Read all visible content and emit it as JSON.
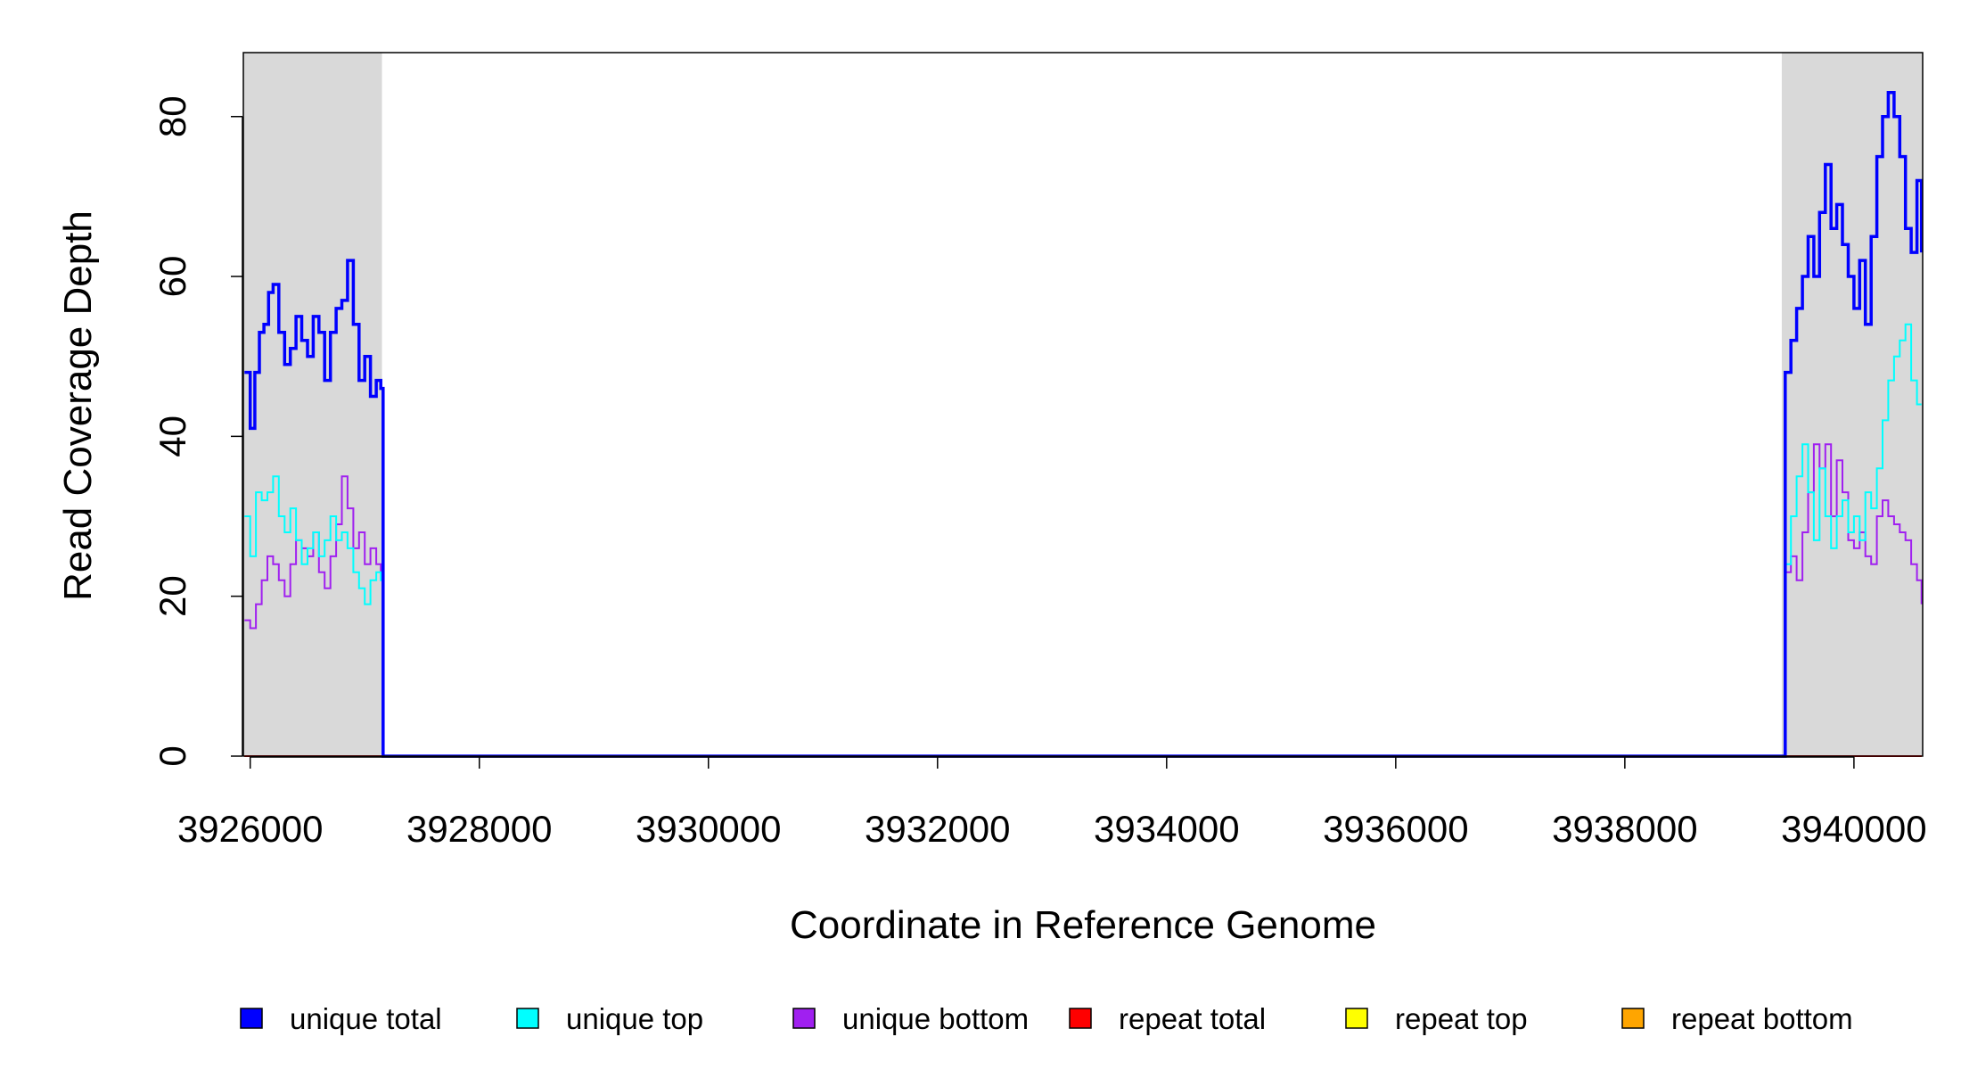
{
  "chart_data": {
    "type": "line",
    "title": "",
    "xlabel": "Coordinate in Reference Genome",
    "ylabel": "Read Coverage Depth",
    "xlim": [
      3925940,
      3940600
    ],
    "ylim": [
      0,
      88
    ],
    "xticks": [
      3926000,
      3928000,
      3930000,
      3932000,
      3934000,
      3936000,
      3938000,
      3940000
    ],
    "xtick_labels": [
      "3926000",
      "3928000",
      "3930000",
      "3932000",
      "3934000",
      "3936000",
      "3938000",
      "3940000"
    ],
    "yticks": [
      0,
      20,
      40,
      60,
      80
    ],
    "ytick_labels": [
      "0",
      "20",
      "40",
      "60",
      "80"
    ],
    "grid": false,
    "legend_position": "bottom",
    "shaded_regions": [
      [
        3925940,
        3927150
      ],
      [
        3939370,
        3940600
      ]
    ],
    "shade_color": "#d9d9d9",
    "series": [
      {
        "name": "unique total",
        "color": "#0000ff",
        "x": [
          3925950,
          3926000,
          3926040,
          3926080,
          3926120,
          3926160,
          3926200,
          3926250,
          3926300,
          3926350,
          3926400,
          3926450,
          3926500,
          3926550,
          3926600,
          3926650,
          3926700,
          3926750,
          3926800,
          3926850,
          3926900,
          3926950,
          3927000,
          3927050,
          3927100,
          3927140,
          3927160,
          3929000,
          3932000,
          3935000,
          3938000,
          3939380,
          3939400,
          3939450,
          3939500,
          3939550,
          3939600,
          3939650,
          3939700,
          3939750,
          3939800,
          3939850,
          3939900,
          3939950,
          3940000,
          3940050,
          3940100,
          3940150,
          3940200,
          3940250,
          3940300,
          3940350,
          3940400,
          3940450,
          3940500,
          3940550,
          3940590
        ],
        "values": [
          48,
          41,
          48,
          53,
          54,
          58,
          59,
          53,
          49,
          51,
          55,
          52,
          50,
          55,
          53,
          47,
          53,
          56,
          57,
          62,
          54,
          47,
          50,
          45,
          47,
          46,
          0,
          0,
          0,
          0,
          0,
          0,
          48,
          52,
          56,
          60,
          65,
          60,
          68,
          74,
          66,
          69,
          64,
          60,
          56,
          62,
          54,
          65,
          75,
          80,
          83,
          80,
          75,
          66,
          63,
          72,
          63
        ]
      },
      {
        "name": "unique top",
        "color": "#00ffff",
        "x": [
          3925950,
          3926000,
          3926050,
          3926100,
          3926150,
          3926200,
          3926250,
          3926300,
          3926350,
          3926400,
          3926450,
          3926500,
          3926550,
          3926600,
          3926650,
          3926700,
          3926750,
          3926800,
          3926850,
          3926900,
          3926950,
          3927000,
          3927050,
          3927100,
          3927140,
          3927160,
          3930000,
          3935000,
          3939380,
          3939400,
          3939450,
          3939500,
          3939550,
          3939600,
          3939650,
          3939700,
          3939750,
          3939800,
          3939850,
          3939900,
          3939950,
          3940000,
          3940050,
          3940100,
          3940150,
          3940200,
          3940250,
          3940300,
          3940350,
          3940400,
          3940450,
          3940500,
          3940550,
          3940590
        ],
        "values": [
          30,
          25,
          33,
          32,
          33,
          35,
          30,
          28,
          31,
          27,
          24,
          26,
          28,
          25,
          27,
          30,
          27,
          28,
          26,
          23,
          21,
          19,
          22,
          23,
          22,
          0,
          0,
          0,
          0,
          24,
          30,
          35,
          39,
          33,
          27,
          36,
          30,
          26,
          30,
          32,
          28,
          30,
          27,
          33,
          31,
          36,
          42,
          47,
          50,
          52,
          54,
          47,
          44,
          44
        ]
      },
      {
        "name": "unique bottom",
        "color": "#a020f0",
        "x": [
          3925950,
          3926000,
          3926050,
          3926100,
          3926150,
          3926200,
          3926250,
          3926300,
          3926350,
          3926400,
          3926450,
          3926500,
          3926550,
          3926600,
          3926650,
          3926700,
          3926750,
          3926800,
          3926850,
          3926900,
          3926950,
          3927000,
          3927050,
          3927100,
          3927140,
          3927160,
          3930000,
          3935000,
          3939380,
          3939400,
          3939450,
          3939500,
          3939550,
          3939600,
          3939650,
          3939700,
          3939750,
          3939800,
          3939850,
          3939900,
          3939950,
          3940000,
          3940050,
          3940100,
          3940150,
          3940200,
          3940250,
          3940300,
          3940350,
          3940400,
          3940450,
          3940500,
          3940550,
          3940590
        ],
        "values": [
          17,
          16,
          19,
          22,
          25,
          24,
          22,
          20,
          24,
          27,
          26,
          25,
          28,
          23,
          21,
          25,
          29,
          35,
          31,
          26,
          28,
          24,
          26,
          24,
          23,
          0,
          0,
          0,
          0,
          23,
          25,
          22,
          28,
          33,
          39,
          36,
          39,
          30,
          37,
          33,
          27,
          26,
          28,
          25,
          24,
          30,
          32,
          30,
          29,
          28,
          27,
          24,
          22,
          19
        ]
      },
      {
        "name": "repeat total",
        "color": "#ff0000",
        "x": [
          3925950,
          3940590
        ],
        "values": [
          0,
          0
        ]
      },
      {
        "name": "repeat top",
        "color": "#ffff00",
        "x": [
          3925950,
          3940590
        ],
        "values": [
          0,
          0
        ]
      },
      {
        "name": "repeat bottom",
        "color": "#ffa500",
        "x": [
          3925950,
          3940590
        ],
        "values": [
          0,
          0
        ]
      }
    ]
  }
}
